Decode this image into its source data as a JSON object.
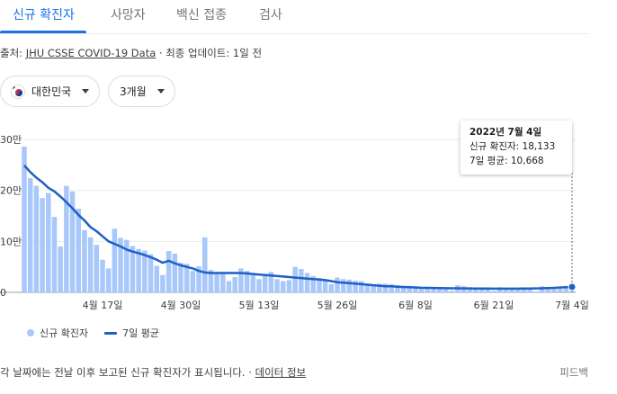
{
  "tabs": [
    {
      "label": "신규 확진자"
    },
    {
      "label": "사망자"
    },
    {
      "label": "백신 접종"
    },
    {
      "label": "검사"
    }
  ],
  "source": {
    "prefix": "출처: ",
    "link": "JHU CSSE COVID-19 Data",
    "updated": " · 최종 업데이트: 1일 전"
  },
  "filters": {
    "country": "대한민국",
    "period": "3개월"
  },
  "tooltip": {
    "date": "2022년 7월 4일",
    "cases": "신규 확진자: 18,133",
    "avg": "7일 평균: 10,668"
  },
  "legend": {
    "bars": "신규 확진자",
    "line": "7일 평균"
  },
  "footer": {
    "note": "각 날짜에는 전날 이후 보고된 신규 확진자가 표시됩니다. · ",
    "link": "데이터 정보",
    "feedback": "피드백"
  },
  "colors": {
    "accent": "#1a73e8",
    "bar": "#a8c7fa",
    "line": "#1f5fc6"
  },
  "chart_data": {
    "type": "bar",
    "y_ticks": [
      "30만",
      "20만",
      "10만",
      "0"
    ],
    "y_tick_values": [
      300000,
      200000,
      100000,
      0
    ],
    "ylim": [
      0,
      300000
    ],
    "x_ticks": [
      {
        "label": "4월 17일",
        "day": 13
      },
      {
        "label": "4월 30일",
        "day": 26
      },
      {
        "label": "5월 13일",
        "day": 39
      },
      {
        "label": "5월 26일",
        "day": 52
      },
      {
        "label": "6월 8일",
        "day": 65
      },
      {
        "label": "6월 21일",
        "day": 78
      },
      {
        "label": "7월 4일",
        "day": 91
      }
    ],
    "series": [
      {
        "name": "신규 확진자",
        "type": "bar",
        "values": [
          286000,
          224000,
          209000,
          185000,
          195000,
          148000,
          90000,
          209000,
          198000,
          164000,
          122000,
          108000,
          93000,
          64000,
          47000,
          125000,
          107000,
          103000,
          91000,
          85000,
          82000,
          75000,
          52000,
          34000,
          81000,
          76000,
          58000,
          56000,
          42000,
          51000,
          108000,
          44000,
          39000,
          36000,
          22000,
          30000,
          47000,
          42000,
          38000,
          26000,
          32000,
          40000,
          26000,
          22000,
          24000,
          50000,
          46000,
          38000,
          32000,
          28000,
          24000,
          16000,
          29000,
          26000,
          25000,
          23000,
          22000,
          17000,
          15000,
          17000,
          17000,
          16000,
          14000,
          13000,
          10000,
          12000,
          10000,
          10000,
          9000,
          8000,
          6000,
          3000,
          14000,
          12000,
          10000,
          9000,
          8000,
          6000,
          3000,
          10000,
          9000,
          8000,
          7000,
          6000,
          5000,
          2000,
          12000,
          10000,
          9000,
          7000,
          8000,
          18133
        ]
      },
      {
        "name": "7일 평균",
        "type": "line",
        "values": [
          249000,
          236000,
          225000,
          216000,
          205000,
          198000,
          188000,
          177000,
          165000,
          152000,
          141000,
          128000,
          120000,
          110000,
          100000,
          95000,
          90000,
          84000,
          80000,
          77000,
          73000,
          69000,
          64000,
          58000,
          62000,
          57000,
          53000,
          50000,
          47000,
          42000,
          39000,
          38000,
          38000,
          38000,
          38000,
          38000,
          38000,
          37000,
          36000,
          35000,
          34000,
          33000,
          32000,
          31000,
          30000,
          29000,
          28000,
          27000,
          26000,
          25000,
          24000,
          22000,
          20000,
          19000,
          18000,
          17000,
          16000,
          15000,
          14000,
          13000,
          12000,
          12000,
          11000,
          10500,
          10000,
          9500,
          9000,
          8800,
          8600,
          8400,
          8200,
          8000,
          7900,
          7800,
          7700,
          7600,
          7500,
          7400,
          7300,
          7300,
          7300,
          7300,
          7300,
          7400,
          7500,
          7700,
          8000,
          8400,
          8900,
          9500,
          10100,
          10668
        ]
      }
    ]
  }
}
